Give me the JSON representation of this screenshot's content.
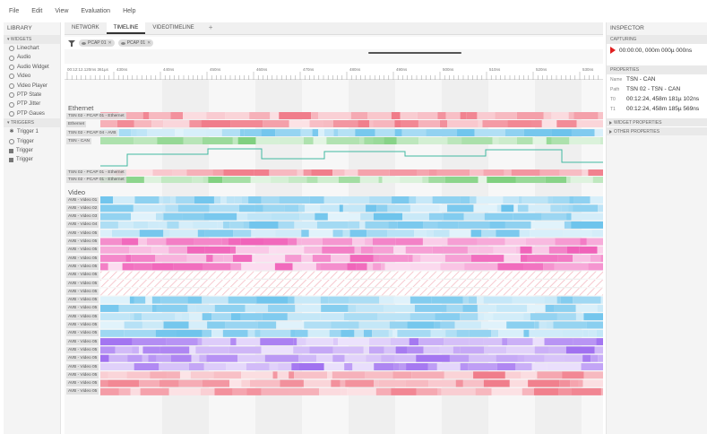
{
  "menu": [
    "File",
    "Edit",
    "View",
    "Evaluation",
    "Help"
  ],
  "library": {
    "title": "LIBRARY",
    "widgets_label": "WIDGETS",
    "widgets": [
      {
        "label": "Linechart",
        "icon": "circle-icon"
      },
      {
        "label": "Audio",
        "icon": "circle-icon"
      },
      {
        "label": "Audio Widget",
        "icon": "circle-icon"
      },
      {
        "label": "Video",
        "icon": "circle-icon"
      },
      {
        "label": "Video Player",
        "icon": "circle-icon"
      },
      {
        "label": "PTP State",
        "icon": "circle-icon"
      },
      {
        "label": "PTP Jitter",
        "icon": "circle-icon"
      },
      {
        "label": "PTP Gaues",
        "icon": "circle-icon"
      }
    ],
    "triggers_label": "TRIGGERS",
    "triggers": [
      {
        "label": "Trigger 1",
        "icon": "star-icon"
      },
      {
        "label": "Trigger",
        "icon": "circle-icon"
      },
      {
        "label": "Trigger",
        "icon": "square-icon"
      },
      {
        "label": "Trigger",
        "icon": "square-icon"
      }
    ]
  },
  "tabs": [
    "NETWORK",
    "TIMELINE",
    "VIDEOTIMELINE",
    "+"
  ],
  "active_tab": 1,
  "filters": [
    "PCAP 01",
    "PCAP 01"
  ],
  "ruler": {
    "start_label": "00:12:12.120ms 361µs",
    "ticks": [
      "430ns",
      "440ns",
      "450ns",
      "460ns",
      "470ns",
      "480ns",
      "490ns",
      "500ns",
      "510ns",
      "520ns",
      "530ns",
      "540ns",
      "550ns"
    ]
  },
  "ethernet": {
    "title": "Ethernet",
    "lanes": [
      {
        "label": "TSN 02 - PCAP 01 - Ethernet",
        "color": "#f07a88"
      },
      {
        "label": "Ethernet",
        "color": "#f07a88"
      },
      {
        "label": "TSN 02 - PCAP 04 - AVB",
        "color": "#6cc3ec"
      },
      {
        "label": "TSN - CAN",
        "color": "#7fd07f"
      }
    ],
    "after_lanes": [
      {
        "label": "TSN 02 - PCAP 01 - Ethernet",
        "color": "#f07a88"
      },
      {
        "label": "TSN 02 - PCAP 01 - Ethernet",
        "color": "#7fd07f"
      }
    ]
  },
  "video": {
    "title": "Video",
    "lanes": [
      {
        "label": "AVB - Video 01",
        "color": "#6cc3ec"
      },
      {
        "label": "AVB - Video 02",
        "color": "#6cc3ec"
      },
      {
        "label": "AVB - Video 03",
        "color": "#6cc3ec"
      },
      {
        "label": "AVB - Video 04",
        "color": "#6cc3ec"
      },
      {
        "label": "AVB - Video 05",
        "color": "#6cc3ec"
      },
      {
        "label": "AVB - Video 05",
        "color": "#f060b8"
      },
      {
        "label": "AVB - Video 05",
        "color": "#f060b8"
      },
      {
        "label": "AVB - Video 05",
        "color": "#f060b8"
      },
      {
        "label": "AVB - Video 05",
        "color": "#f060b8"
      },
      {
        "label": "AVB - Video 05",
        "color": "hatched"
      },
      {
        "label": "AVB - Video 05",
        "color": "hatched"
      },
      {
        "label": "AVB - Video 05",
        "color": "hatched"
      },
      {
        "label": "AVB - Video 05",
        "color": "#6cc3ec"
      },
      {
        "label": "AVB - Video 05",
        "color": "#6cc3ec"
      },
      {
        "label": "AVB - Video 05",
        "color": "#6cc3ec"
      },
      {
        "label": "AVB - Video 05",
        "color": "#6cc3ec"
      },
      {
        "label": "AVB - Video 05",
        "color": "#6cc3ec"
      },
      {
        "label": "AVB - Video 05",
        "color": "#a070f0"
      },
      {
        "label": "AVB - Video 05",
        "color": "#a070f0"
      },
      {
        "label": "AVB - Video 05",
        "color": "#a070f0"
      },
      {
        "label": "AVB - Video 05",
        "color": "#a070f0"
      },
      {
        "label": "AVB - Video 05",
        "color": "#f07a88"
      },
      {
        "label": "AVB - Video 05",
        "color": "#f07a88"
      },
      {
        "label": "AVB - Video 05",
        "color": "#f07a88"
      }
    ]
  },
  "inspector": {
    "title": "INSPECTOR",
    "capturing_label": "CAPTURING",
    "capture_time": "00:00:00, 000m 000µ 000ns",
    "properties_label": "PROPERTIES",
    "props": [
      {
        "key": "Name",
        "value": "TSN - CAN"
      },
      {
        "key": "Path",
        "value": "TSN 02 - TSN - CAN"
      },
      {
        "key": "T0",
        "value": "00:12:24, 458m 181µ 102ns"
      },
      {
        "key": "T1",
        "value": "00:12:24, 458m 185µ 569ns"
      }
    ],
    "collapsed": [
      "WIDGET PROPERTIES",
      "OTHER PROPERTIES"
    ]
  },
  "colors": {
    "pink": "#f07a88",
    "blue": "#6cc3ec",
    "green": "#7fd07f",
    "magenta": "#f060b8",
    "purple": "#a070f0",
    "signal": "#40b8a0"
  }
}
